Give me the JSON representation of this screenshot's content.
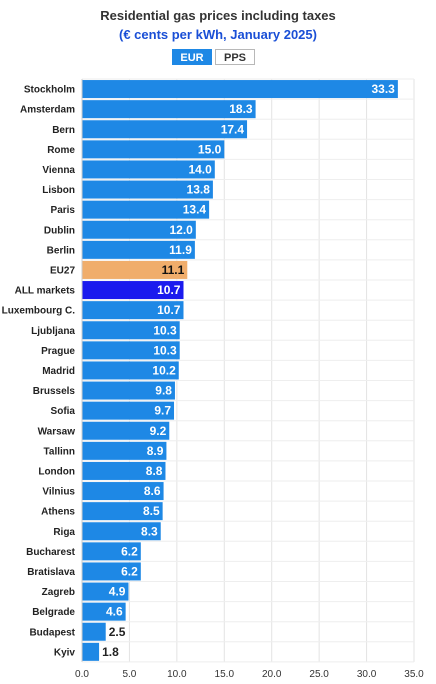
{
  "header": {
    "title": "Residential gas prices including taxes",
    "subtitle": "(€ cents per kWh, January 2025)"
  },
  "toggle": {
    "eur_label": "EUR",
    "pps_label": "PPS",
    "selected": "EUR"
  },
  "colors": {
    "default_bar": "#1e88e5",
    "eu27_bar": "#f0ad6b",
    "all_markets_bar": "#1a1aee"
  },
  "chart_data": {
    "type": "bar",
    "orientation": "horizontal",
    "title": "Residential gas prices including taxes",
    "subtitle": "(€ cents per kWh, January 2025)",
    "categories": [
      "Stockholm",
      "Amsterdam",
      "Bern",
      "Rome",
      "Vienna",
      "Lisbon",
      "Paris",
      "Dublin",
      "Berlin",
      "EU27",
      "ALL markets",
      "Luxembourg C.",
      "Ljubljana",
      "Prague",
      "Madrid",
      "Brussels",
      "Sofia",
      "Warsaw",
      "Tallinn",
      "London",
      "Vilnius",
      "Athens",
      "Riga",
      "Bucharest",
      "Bratislava",
      "Zagreb",
      "Belgrade",
      "Budapest",
      "Kyiv"
    ],
    "values": [
      33.3,
      18.3,
      17.4,
      15.0,
      14.0,
      13.8,
      13.4,
      12.0,
      11.9,
      11.1,
      10.7,
      10.7,
      10.3,
      10.3,
      10.2,
      9.8,
      9.7,
      9.2,
      8.9,
      8.8,
      8.6,
      8.5,
      8.3,
      6.2,
      6.2,
      4.9,
      4.6,
      2.5,
      1.8
    ],
    "value_labels": [
      "33.3",
      "18.3",
      "17.4",
      "15.0",
      "14.0",
      "13.8",
      "13.4",
      "12.0",
      "11.9",
      "11.1",
      "10.7",
      "10.7",
      "10.3",
      "10.3",
      "10.2",
      "9.8",
      "9.7",
      "9.2",
      "8.9",
      "8.8",
      "8.6",
      "8.5",
      "8.3",
      "6.2",
      "6.2",
      "4.9",
      "4.6",
      "2.5",
      "1.8"
    ],
    "highlight": {
      "EU27": "eu27",
      "ALL markets": "all_markets"
    },
    "xlim": [
      0,
      35
    ],
    "xticks": [
      "0.0",
      "5.0",
      "10.0",
      "15.0",
      "20.0",
      "25.0",
      "30.0",
      "35.0"
    ],
    "grid": true,
    "xlabel": "",
    "ylabel": ""
  }
}
